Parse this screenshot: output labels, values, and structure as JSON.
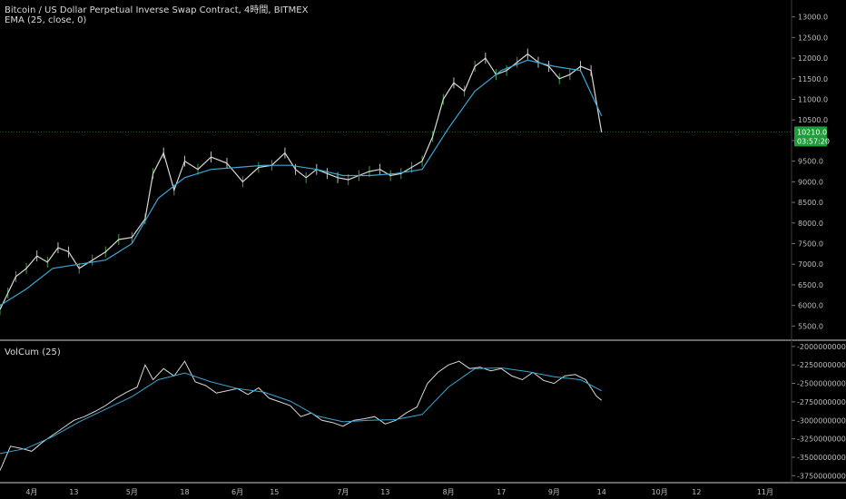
{
  "header": {
    "symbol_line": "Bitcoin / US Dollar Perpetual Inverse Swap Contract, 4時間, BITMEX",
    "indicator_line": "EMA (25, close, 0)"
  },
  "lower_pane": {
    "indicator_label": "VolCum (25)"
  },
  "colors": {
    "background": "#000000",
    "price_line": "#d8d8d8",
    "up_candle": "#4caf50",
    "ema_line": "#3aa7d6",
    "volcum_line": "#d8d8d8",
    "volcum_ema": "#3aa7d6",
    "price_badge": "#1e9e3a",
    "separator": "#cfcfcf"
  },
  "price_badge": {
    "price": "10210.0",
    "countdown": "03:57:20"
  },
  "chart_data": [
    {
      "type": "line",
      "pane": "price",
      "title": "Bitcoin / US Dollar Perpetual Inverse Swap Contract, 4時間, BITMEX",
      "x_ticks": [
        "4月",
        "13",
        "5月",
        "18",
        "6月",
        "15",
        "7月",
        "13",
        "8月",
        "17",
        "9月",
        "14",
        "10月",
        "12",
        "11月"
      ],
      "y_ticks": [
        "13000.0",
        "12500.0",
        "12000.0",
        "11500.0",
        "11000.0",
        "10500.0",
        "10000.0",
        "9500.0",
        "9000.0",
        "8500.0",
        "8000.0",
        "7500.0",
        "7000.0",
        "6500.0",
        "6000.0",
        "5500.0"
      ],
      "ylim": [
        5200,
        13300
      ],
      "current_price": 10210.0,
      "series": [
        {
          "x": [
            0,
            3,
            6,
            10,
            14,
            18,
            22,
            26,
            30,
            35,
            40,
            45,
            50,
            55,
            58,
            62,
            66,
            70,
            75,
            80,
            86,
            92,
            98,
            103,
            108,
            112,
            116,
            120,
            124,
            128,
            132,
            136,
            140,
            144,
            148,
            152,
            156,
            160,
            164,
            168,
            172,
            176,
            180,
            184,
            188,
            192,
            196,
            200,
            204,
            208,
            212,
            216,
            220,
            224,
            228
          ],
          "values": [
            5900,
            6300,
            6700,
            6900,
            7200,
            7050,
            7400,
            7300,
            6900,
            7100,
            7300,
            7600,
            7650,
            8100,
            9200,
            9700,
            8800,
            9500,
            9300,
            9600,
            9450,
            9000,
            9350,
            9400,
            9700,
            9300,
            9100,
            9300,
            9200,
            9100,
            9050,
            9150,
            9250,
            9300,
            9150,
            9200,
            9350,
            9500,
            10100,
            11000,
            11400,
            11200,
            11800,
            12000,
            11600,
            11700,
            11900,
            12100,
            11900,
            11800,
            11500,
            11600,
            11800,
            11700,
            10200
          ]
        },
        {
          "name": "EMA (25, close, 0)",
          "x": [
            0,
            10,
            20,
            30,
            40,
            50,
            60,
            70,
            80,
            90,
            100,
            110,
            120,
            130,
            140,
            150,
            160,
            170,
            180,
            190,
            200,
            210,
            220,
            228
          ],
          "values": [
            6000,
            6400,
            6900,
            7000,
            7100,
            7500,
            8600,
            9100,
            9300,
            9350,
            9400,
            9400,
            9300,
            9150,
            9150,
            9200,
            9300,
            10300,
            11200,
            11700,
            11950,
            11800,
            11700,
            10600
          ]
        }
      ]
    },
    {
      "type": "line",
      "pane": "indicator",
      "title": "VolCum (25)",
      "x_ticks": [
        "4月",
        "13",
        "5月",
        "18",
        "6月",
        "15",
        "7月",
        "13",
        "8月",
        "17",
        "9月",
        "14",
        "10月",
        "12",
        "11月"
      ],
      "y_ticks": [
        "-20000000000.0",
        "-22500000000.0",
        "-25000000000.0",
        "-27500000000.0",
        "-30000000000.0",
        "-32500000000.0",
        "-35000000000.0",
        "-37500000000.0"
      ],
      "ylim": [
        -38200000000,
        -19400000000
      ],
      "series": [
        {
          "x": [
            0,
            4,
            8,
            12,
            16,
            20,
            24,
            28,
            32,
            36,
            40,
            44,
            48,
            52,
            55,
            58,
            62,
            66,
            70,
            74,
            78,
            82,
            86,
            90,
            94,
            98,
            102,
            106,
            110,
            114,
            118,
            122,
            126,
            130,
            134,
            138,
            142,
            146,
            150,
            154,
            158,
            162,
            166,
            170,
            174,
            178,
            182,
            186,
            190,
            194,
            198,
            202,
            206,
            210,
            214,
            218,
            222,
            226,
            228
          ],
          "values": [
            -36800000000,
            -33500000000,
            -33800000000,
            -34200000000,
            -33000000000,
            -32000000000,
            -31000000000,
            -30000000000,
            -29500000000,
            -28800000000,
            -28000000000,
            -27000000000,
            -26200000000,
            -25500000000,
            -22500000000,
            -24500000000,
            -23000000000,
            -24000000000,
            -22000000000,
            -24800000000,
            -25300000000,
            -26300000000,
            -26000000000,
            -25700000000,
            -26500000000,
            -25600000000,
            -27000000000,
            -27500000000,
            -28000000000,
            -29500000000,
            -29000000000,
            -30000000000,
            -30300000000,
            -30800000000,
            -30000000000,
            -29800000000,
            -29500000000,
            -30500000000,
            -30000000000,
            -29000000000,
            -28200000000,
            -25000000000,
            -23500000000,
            -22500000000,
            -22000000000,
            -23000000000,
            -22800000000,
            -23300000000,
            -23000000000,
            -24000000000,
            -24500000000,
            -23500000000,
            -24600000000,
            -25000000000,
            -24000000000,
            -23800000000,
            -24500000000,
            -26700000000,
            -27300000000
          ]
        },
        {
          "name": "EMA",
          "x": [
            0,
            10,
            20,
            30,
            40,
            50,
            60,
            70,
            80,
            90,
            100,
            110,
            120,
            130,
            140,
            150,
            160,
            170,
            180,
            190,
            200,
            210,
            220,
            228
          ],
          "values": [
            -34500000000,
            -33800000000,
            -32200000000,
            -30200000000,
            -28500000000,
            -26800000000,
            -24500000000,
            -23600000000,
            -24800000000,
            -25700000000,
            -26200000000,
            -27400000000,
            -29400000000,
            -30200000000,
            -30000000000,
            -29900000000,
            -29200000000,
            -25500000000,
            -23000000000,
            -22900000000,
            -23400000000,
            -24100000000,
            -24500000000,
            -26000000000
          ]
        }
      ]
    }
  ]
}
